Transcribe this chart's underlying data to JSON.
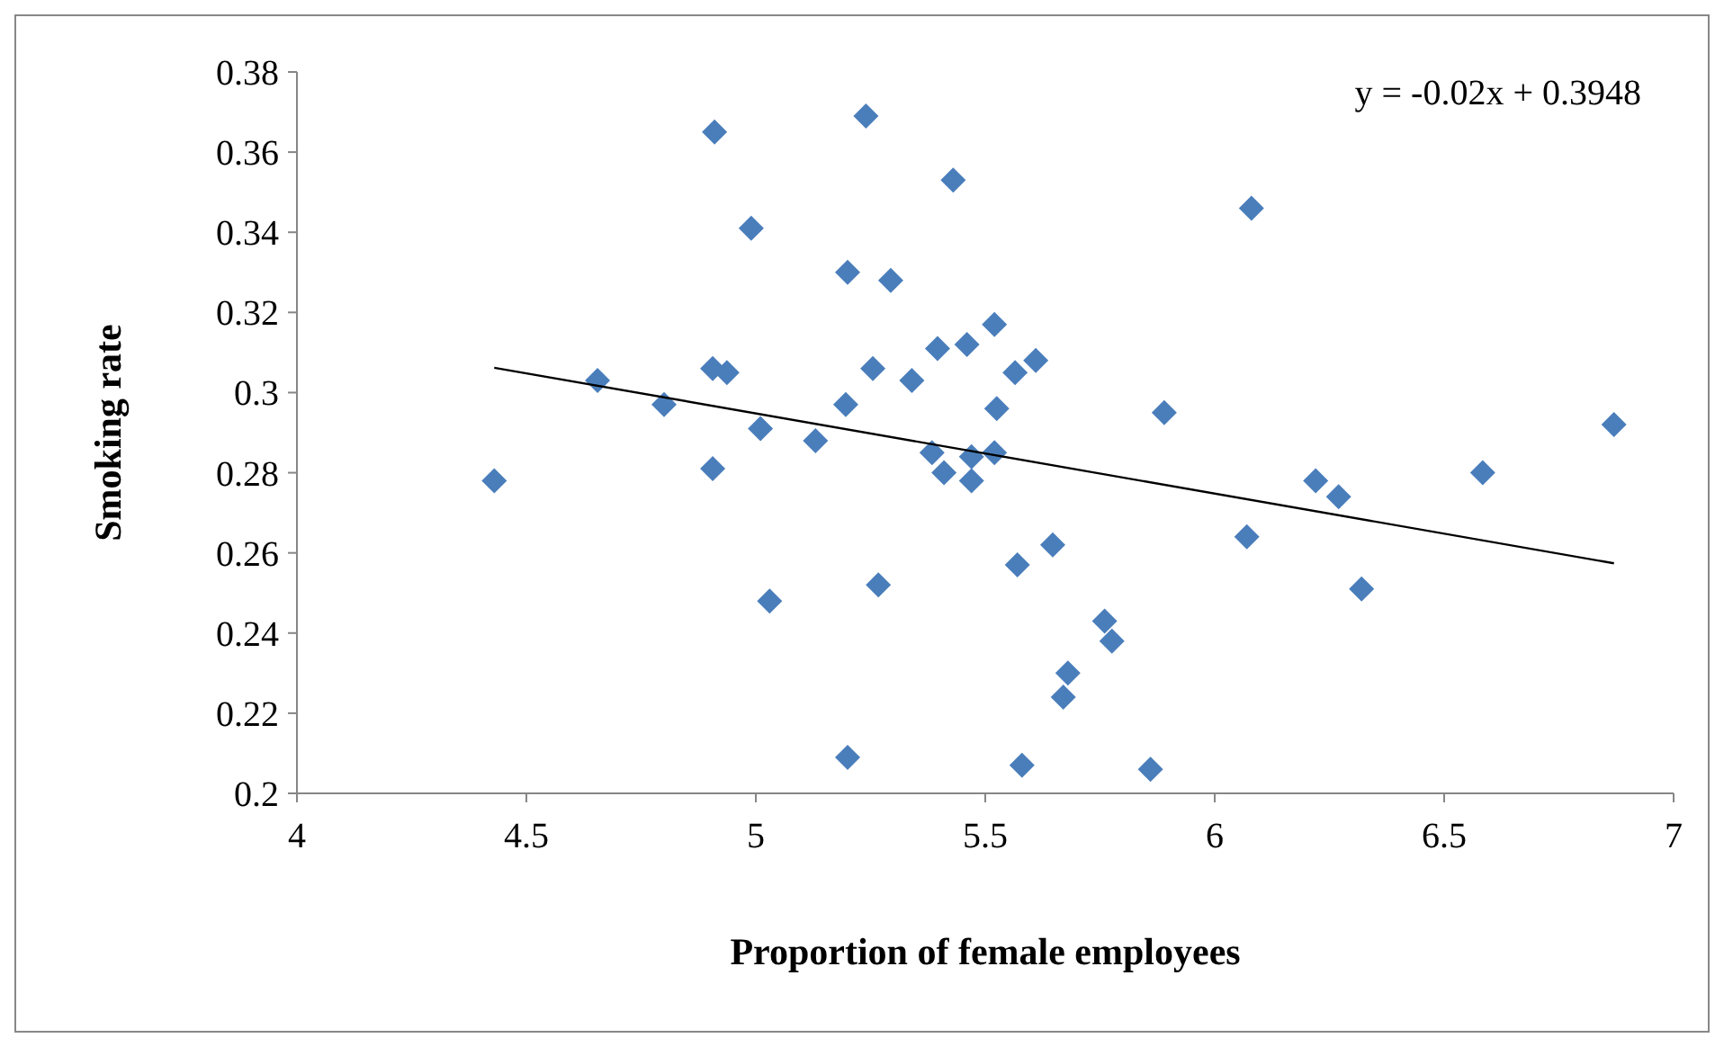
{
  "chart_data": {
    "type": "scatter",
    "xlabel": "Proportion of female employees",
    "ylabel": "Smoking rate",
    "xlim": [
      4,
      7
    ],
    "ylim": [
      0.2,
      0.38
    ],
    "xticks": [
      4,
      4.5,
      5,
      5.5,
      6,
      6.5,
      7
    ],
    "yticks": [
      {
        "value": 0.2,
        "label": "0.2"
      },
      {
        "value": 0.22,
        "label": "0.22"
      },
      {
        "value": 0.24,
        "label": "0.24"
      },
      {
        "value": 0.26,
        "label": "0.26"
      },
      {
        "value": 0.28,
        "label": "0.28"
      },
      {
        "value": 0.3,
        "label": "0.3"
      },
      {
        "value": 0.32,
        "label": "0.32"
      },
      {
        "value": 0.34,
        "label": "0.34"
      },
      {
        "value": 0.36,
        "label": "0.36"
      },
      {
        "value": 0.38,
        "label": "0.38"
      }
    ],
    "grid": false,
    "annotations": [
      "y = -0.02x + 0.3948"
    ],
    "series": [
      {
        "marker": "diamond",
        "color": "#4a7ebb",
        "x": [
          4.43,
          4.655,
          4.8,
          4.906,
          4.937,
          4.91,
          4.906,
          4.99,
          5.01,
          5.03,
          5.13,
          5.2,
          5.196,
          5.2,
          5.24,
          5.255,
          5.267,
          5.294,
          5.34,
          5.384,
          5.396,
          5.41,
          5.43,
          5.46,
          5.47,
          5.47,
          5.52,
          5.525,
          5.52,
          5.565,
          5.61,
          5.57,
          5.58,
          5.647,
          5.76,
          5.776,
          5.68,
          5.67,
          5.86,
          5.89,
          6.08,
          6.07,
          6.22,
          6.27,
          6.32,
          6.584,
          6.87
        ],
        "values": [
          0.278,
          0.303,
          0.297,
          0.306,
          0.305,
          0.365,
          0.281,
          0.341,
          0.291,
          0.248,
          0.288,
          0.33,
          0.297,
          0.209,
          0.369,
          0.306,
          0.252,
          0.328,
          0.303,
          0.285,
          0.311,
          0.28,
          0.353,
          0.312,
          0.284,
          0.278,
          0.285,
          0.296,
          0.317,
          0.305,
          0.308,
          0.257,
          0.207,
          0.262,
          0.243,
          0.238,
          0.23,
          0.224,
          0.206,
          0.295,
          0.346,
          0.264,
          0.278,
          0.274,
          0.251,
          0.28,
          0.292
        ]
      },
      {
        "type": "line",
        "marker": "none",
        "color": "#000000",
        "x": [
          4.43,
          6.87
        ],
        "values": [
          0.3062,
          0.2574
        ]
      }
    ]
  }
}
